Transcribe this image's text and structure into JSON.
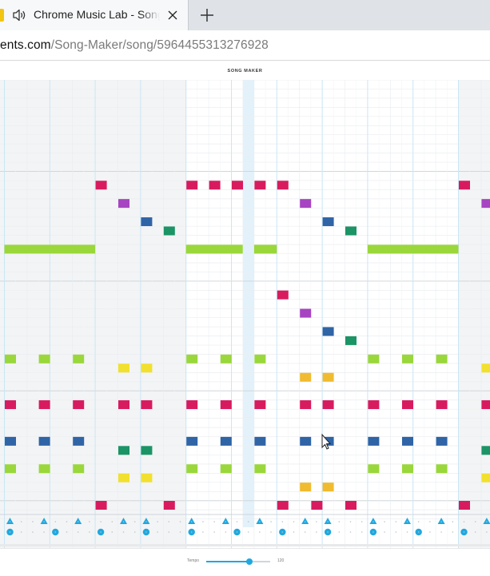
{
  "browser": {
    "tab_title": "Chrome Music Lab - Song Maker",
    "url_host": "ents.com",
    "url_path": "/Song-Maker/song/5964455313276928"
  },
  "app": {
    "title": "SONG MAKER"
  },
  "tempo": {
    "label": "Tempo",
    "value_text": "120",
    "level": 0.68
  },
  "colors": {
    "red": "#d81b5e",
    "purple": "#a744c2",
    "blue": "#2f64a6",
    "teal": "#1b9466",
    "green": "#9ad73a",
    "yellow": "#f2e02e",
    "orange": "#f0bb2f",
    "rhythm": "#1fa8e0"
  },
  "song": {
    "notes": [
      {
        "c": 4,
        "r": 11,
        "color": "red"
      },
      {
        "c": 5,
        "r": 13,
        "color": "purple"
      },
      {
        "c": 6,
        "r": 15,
        "color": "blue"
      },
      {
        "c": 7,
        "r": 16,
        "color": "teal"
      },
      {
        "c": 8,
        "r": 11,
        "color": "red"
      },
      {
        "c": 9,
        "r": 11,
        "color": "red"
      },
      {
        "c": 10,
        "r": 11,
        "color": "red"
      },
      {
        "c": 11,
        "r": 11,
        "color": "red"
      },
      {
        "c": 12,
        "r": 11,
        "color": "red"
      },
      {
        "c": 13,
        "r": 13,
        "color": "purple"
      },
      {
        "c": 14,
        "r": 15,
        "color": "blue"
      },
      {
        "c": 15,
        "r": 16,
        "color": "teal"
      },
      {
        "c": 20,
        "r": 11,
        "color": "red"
      },
      {
        "c": 21,
        "r": 13,
        "color": "purple"
      },
      {
        "c": 0,
        "r": 18,
        "len": 4,
        "color": "green"
      },
      {
        "c": 8,
        "r": 18,
        "len": 2.5,
        "color": "green"
      },
      {
        "c": 11,
        "r": 18,
        "len": 1,
        "color": "green"
      },
      {
        "c": 16,
        "r": 18,
        "len": 4,
        "color": "green"
      },
      {
        "c": 12,
        "r": 23,
        "color": "red"
      },
      {
        "c": 13,
        "r": 25,
        "color": "purple"
      },
      {
        "c": 14,
        "r": 27,
        "color": "blue"
      },
      {
        "c": 15,
        "r": 28,
        "color": "teal"
      },
      {
        "c": 0,
        "r": 30,
        "color": "green"
      },
      {
        "c": 1.5,
        "r": 30,
        "color": "green"
      },
      {
        "c": 3,
        "r": 30,
        "color": "green"
      },
      {
        "c": 8,
        "r": 30,
        "color": "green"
      },
      {
        "c": 9.5,
        "r": 30,
        "color": "green"
      },
      {
        "c": 11,
        "r": 30,
        "color": "green"
      },
      {
        "c": 16,
        "r": 30,
        "color": "green"
      },
      {
        "c": 17.5,
        "r": 30,
        "color": "green"
      },
      {
        "c": 19,
        "r": 30,
        "color": "green"
      },
      {
        "c": 5,
        "r": 31,
        "color": "yellow"
      },
      {
        "c": 6,
        "r": 31,
        "color": "yellow"
      },
      {
        "c": 21,
        "r": 31,
        "color": "yellow"
      },
      {
        "c": 13,
        "r": 32,
        "color": "orange"
      },
      {
        "c": 14,
        "r": 32,
        "color": "orange"
      },
      {
        "c": 0,
        "r": 35,
        "color": "red"
      },
      {
        "c": 1.5,
        "r": 35,
        "color": "red"
      },
      {
        "c": 3,
        "r": 35,
        "color": "red"
      },
      {
        "c": 5,
        "r": 35,
        "color": "red"
      },
      {
        "c": 6,
        "r": 35,
        "color": "red"
      },
      {
        "c": 8,
        "r": 35,
        "color": "red"
      },
      {
        "c": 9.5,
        "r": 35,
        "color": "red"
      },
      {
        "c": 11,
        "r": 35,
        "color": "red"
      },
      {
        "c": 13,
        "r": 35,
        "color": "red"
      },
      {
        "c": 14,
        "r": 35,
        "color": "red"
      },
      {
        "c": 16,
        "r": 35,
        "color": "red"
      },
      {
        "c": 17.5,
        "r": 35,
        "color": "red"
      },
      {
        "c": 19,
        "r": 35,
        "color": "red"
      },
      {
        "c": 21,
        "r": 35,
        "color": "red"
      },
      {
        "c": 0,
        "r": 39,
        "color": "blue"
      },
      {
        "c": 1.5,
        "r": 39,
        "color": "blue"
      },
      {
        "c": 3,
        "r": 39,
        "color": "blue"
      },
      {
        "c": 8,
        "r": 39,
        "color": "blue"
      },
      {
        "c": 9.5,
        "r": 39,
        "color": "blue"
      },
      {
        "c": 11,
        "r": 39,
        "color": "blue"
      },
      {
        "c": 13,
        "r": 39,
        "color": "blue"
      },
      {
        "c": 14,
        "r": 39,
        "color": "blue"
      },
      {
        "c": 16,
        "r": 39,
        "color": "blue"
      },
      {
        "c": 17.5,
        "r": 39,
        "color": "blue"
      },
      {
        "c": 19,
        "r": 39,
        "color": "blue"
      },
      {
        "c": 5,
        "r": 40,
        "color": "teal"
      },
      {
        "c": 6,
        "r": 40,
        "color": "teal"
      },
      {
        "c": 21,
        "r": 40,
        "color": "teal"
      },
      {
        "c": 0,
        "r": 42,
        "color": "green"
      },
      {
        "c": 1.5,
        "r": 42,
        "color": "green"
      },
      {
        "c": 3,
        "r": 42,
        "color": "green"
      },
      {
        "c": 8,
        "r": 42,
        "color": "green"
      },
      {
        "c": 9.5,
        "r": 42,
        "color": "green"
      },
      {
        "c": 11,
        "r": 42,
        "color": "green"
      },
      {
        "c": 16,
        "r": 42,
        "color": "green"
      },
      {
        "c": 17.5,
        "r": 42,
        "color": "green"
      },
      {
        "c": 19,
        "r": 42,
        "color": "green"
      },
      {
        "c": 5,
        "r": 43,
        "color": "yellow"
      },
      {
        "c": 6,
        "r": 43,
        "color": "yellow"
      },
      {
        "c": 21,
        "r": 43,
        "color": "yellow"
      },
      {
        "c": 13,
        "r": 44,
        "color": "orange"
      },
      {
        "c": 14,
        "r": 44,
        "color": "orange"
      },
      {
        "c": 4,
        "r": 46,
        "color": "red"
      },
      {
        "c": 7,
        "r": 46,
        "color": "red"
      },
      {
        "c": 12,
        "r": 46,
        "color": "red"
      },
      {
        "c": 13.5,
        "r": 46,
        "color": "red"
      },
      {
        "c": 15,
        "r": 46,
        "color": "red"
      },
      {
        "c": 20,
        "r": 46,
        "color": "red"
      }
    ],
    "rhythm_triangles": [
      0,
      1.5,
      3,
      5,
      6,
      8,
      9.5,
      11,
      13,
      14,
      16,
      17.5,
      19,
      21
    ],
    "rhythm_circles": [
      0,
      2,
      4,
      6,
      8,
      10,
      12,
      14,
      16,
      18,
      20
    ],
    "playhead_column": 10.5
  }
}
